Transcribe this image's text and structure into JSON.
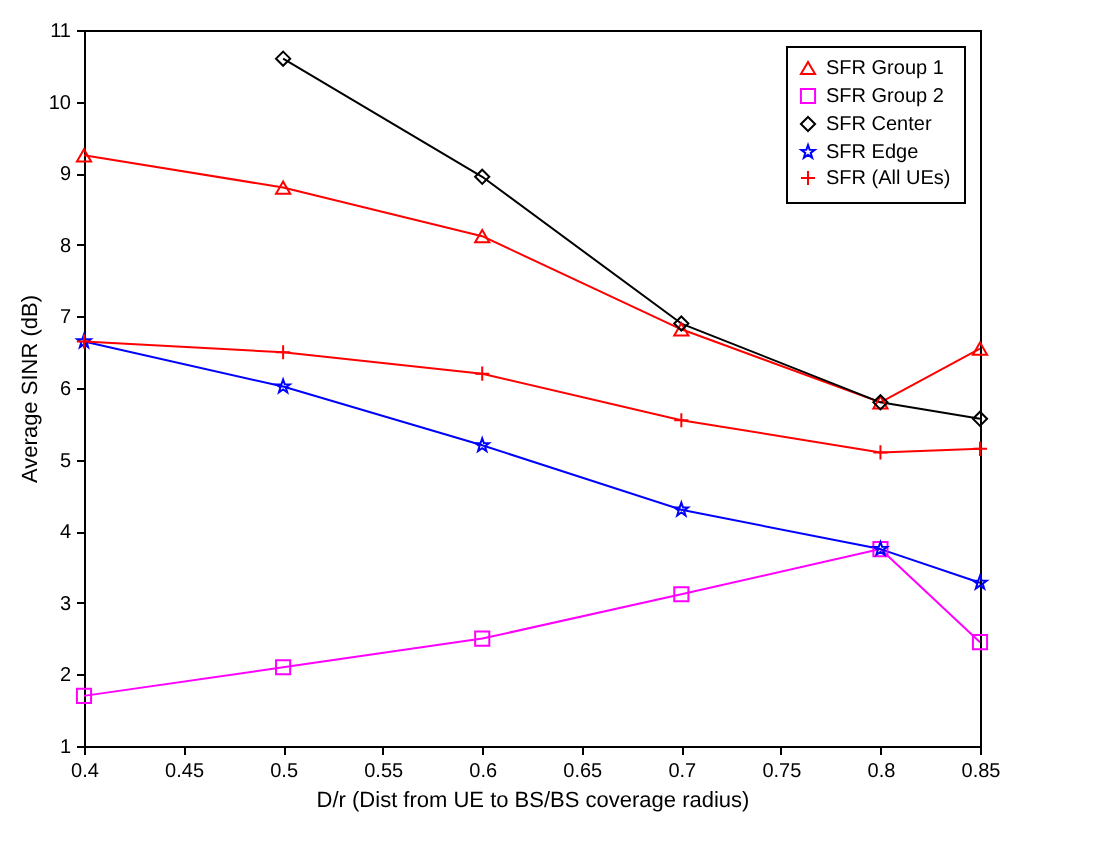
{
  "chart_data": {
    "type": "line",
    "xlabel": "D/r (Dist from UE to BS/BS coverage radius)",
    "ylabel": "Average SINR (dB)",
    "x": [
      0.4,
      0.5,
      0.6,
      0.7,
      0.8,
      0.85
    ],
    "series": [
      {
        "name": "SFR Group 1",
        "color": "#ff0000",
        "marker": "triangle",
        "values": [
          9.25,
          8.8,
          8.12,
          6.82,
          5.8,
          6.55
        ]
      },
      {
        "name": "SFR Group 2",
        "color": "#ff00ff",
        "marker": "square",
        "values": [
          1.7,
          2.1,
          2.5,
          3.12,
          3.75,
          2.45
        ]
      },
      {
        "name": "SFR Center",
        "color": "#000000",
        "marker": "diamond",
        "values": [
          null,
          10.6,
          8.95,
          6.9,
          5.8,
          5.57
        ]
      },
      {
        "name": "SFR Edge",
        "color": "#0000ff",
        "marker": "star",
        "values": [
          6.65,
          6.02,
          5.2,
          4.3,
          3.75,
          3.28
        ]
      },
      {
        "name": "SFR (All UEs)",
        "color": "#ff0000",
        "marker": "cross",
        "values": [
          6.65,
          6.5,
          6.2,
          5.55,
          5.1,
          5.15
        ]
      }
    ],
    "xlim": [
      0.4,
      0.85
    ],
    "xticks": [
      0.4,
      0.45,
      0.5,
      0.55,
      0.6,
      0.65,
      0.7,
      0.75,
      0.8,
      0.85
    ],
    "ylim": [
      1,
      11
    ],
    "yticks": [
      1,
      2,
      3,
      4,
      5,
      6,
      7,
      8,
      9,
      10,
      11
    ],
    "grid": false,
    "legend": "top right",
    "line_style": "solid"
  }
}
